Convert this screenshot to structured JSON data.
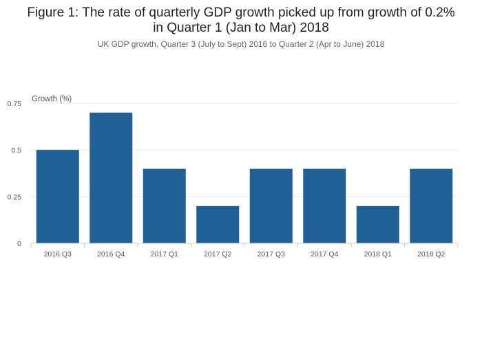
{
  "title_line1": "Figure 1: The rate of quarterly GDP growth picked up from growth of 0.2%",
  "title_line2": "in Quarter 1 (Jan to Mar) 2018",
  "subtitle": "UK GDP growth, Quarter 3 (July to Sept) 2016 to Quarter 2 (Apr to June) 2018",
  "colors": {
    "bar": "#206095",
    "grid": "#e6e6e6",
    "axis": "#cccccc"
  },
  "chart_data": {
    "type": "bar",
    "title": "Figure 1: The rate of quarterly GDP growth picked up from growth of 0.2% in Quarter 1 (Jan to Mar) 2018",
    "subtitle": "UK GDP growth, Quarter 3 (July to Sept) 2016 to Quarter 2 (Apr to June) 2018",
    "ylabel": "Growth (%)",
    "xlabel": "",
    "categories": [
      "2016 Q3",
      "2016 Q4",
      "2017 Q1",
      "2017 Q2",
      "2017 Q3",
      "2017 Q4",
      "2018 Q1",
      "2018 Q2"
    ],
    "values": [
      0.5,
      0.7,
      0.4,
      0.2,
      0.4,
      0.4,
      0.2,
      0.4
    ],
    "ylim": [
      0,
      0.75
    ],
    "yticks": [
      0,
      0.25,
      0.5,
      0.75
    ],
    "ytick_labels": [
      "0",
      "0.25",
      "0.5",
      "0.75"
    ],
    "grid": true
  }
}
